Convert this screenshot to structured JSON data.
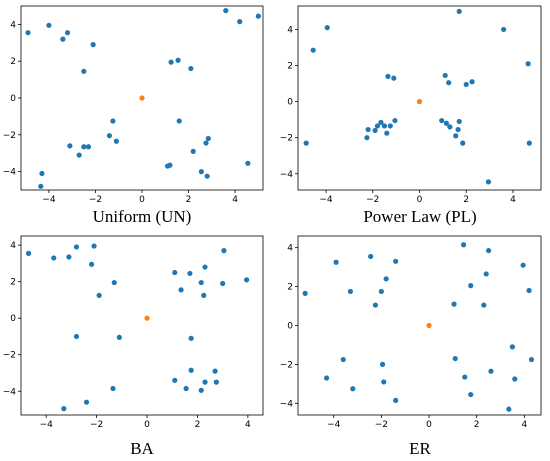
{
  "colors": {
    "node": "#1f77b4",
    "center": "#ff7f0e"
  },
  "chart_data": [
    {
      "type": "scatter",
      "caption": "Uniform (UN)",
      "xlim": [
        -5.2,
        5.2
      ],
      "ylim": [
        -5.0,
        5.0
      ],
      "xticks": [
        -4,
        -2,
        0,
        2,
        4
      ],
      "yticks": [
        -4,
        -2,
        0,
        2,
        4
      ],
      "xtick_labels": [
        "−4",
        "−2",
        "0",
        "2",
        "4"
      ],
      "ytick_labels": [
        "−4",
        "−2",
        "0",
        "2",
        "4"
      ],
      "grid": false,
      "series": [
        {
          "role": "nodes",
          "color": "#1f77b4",
          "points": [
            [
              -4.9,
              3.55
            ],
            [
              -4.3,
              -4.1
            ],
            [
              -4.35,
              -4.8
            ],
            [
              -4.0,
              3.95
            ],
            [
              -3.4,
              3.2
            ],
            [
              -3.2,
              3.55
            ],
            [
              -3.1,
              -2.6
            ],
            [
              -2.7,
              -3.1
            ],
            [
              -2.5,
              1.45
            ],
            [
              -2.5,
              -2.65
            ],
            [
              -2.3,
              -2.65
            ],
            [
              -2.1,
              2.9
            ],
            [
              -1.4,
              -2.05
            ],
            [
              -1.25,
              -1.25
            ],
            [
              -1.1,
              -2.35
            ],
            [
              1.1,
              -3.7
            ],
            [
              1.2,
              -3.65
            ],
            [
              1.25,
              1.95
            ],
            [
              1.55,
              2.05
            ],
            [
              1.6,
              -1.25
            ],
            [
              2.1,
              1.6
            ],
            [
              2.2,
              -2.9
            ],
            [
              2.55,
              -4.0
            ],
            [
              2.75,
              -2.45
            ],
            [
              2.85,
              -2.2
            ],
            [
              2.8,
              -4.25
            ],
            [
              3.6,
              4.75
            ],
            [
              4.2,
              4.15
            ],
            [
              4.55,
              -3.55
            ],
            [
              5.0,
              4.45
            ]
          ]
        },
        {
          "role": "center",
          "color": "#ff7f0e",
          "points": [
            [
              0,
              0
            ]
          ]
        }
      ]
    },
    {
      "type": "scatter",
      "caption": "Power Law (PL)",
      "xlim": [
        -5.2,
        5.2
      ],
      "ylim": [
        -4.9,
        5.3
      ],
      "xticks": [
        -4,
        -2,
        0,
        2,
        4
      ],
      "yticks": [
        -4,
        -2,
        0,
        2,
        4
      ],
      "xtick_labels": [
        "−4",
        "−2",
        "0",
        "2",
        "4"
      ],
      "ytick_labels": [
        "−4",
        "−2",
        "0",
        "2",
        "4"
      ],
      "grid": false,
      "series": [
        {
          "role": "nodes",
          "color": "#1f77b4",
          "points": [
            [
              -4.85,
              -2.3
            ],
            [
              -4.55,
              2.85
            ],
            [
              -3.95,
              4.1
            ],
            [
              -2.25,
              -2.0
            ],
            [
              -2.2,
              -1.55
            ],
            [
              -1.9,
              -1.6
            ],
            [
              -1.8,
              -1.35
            ],
            [
              -1.65,
              -1.15
            ],
            [
              -1.5,
              -1.35
            ],
            [
              -1.4,
              -1.75
            ],
            [
              -1.35,
              1.4
            ],
            [
              -1.25,
              -1.35
            ],
            [
              -1.1,
              1.3
            ],
            [
              -1.05,
              -1.05
            ],
            [
              0.95,
              -1.05
            ],
            [
              1.1,
              1.45
            ],
            [
              1.15,
              -1.2
            ],
            [
              1.25,
              1.05
            ],
            [
              1.3,
              -1.4
            ],
            [
              1.55,
              -1.9
            ],
            [
              1.65,
              -1.55
            ],
            [
              1.7,
              -1.1
            ],
            [
              1.7,
              5.0
            ],
            [
              1.85,
              -2.3
            ],
            [
              2.0,
              0.95
            ],
            [
              2.25,
              1.1
            ],
            [
              2.95,
              -4.45
            ],
            [
              3.6,
              4.0
            ],
            [
              4.65,
              2.1
            ],
            [
              4.7,
              -2.3
            ]
          ]
        },
        {
          "role": "center",
          "color": "#ff7f0e",
          "points": [
            [
              0,
              0
            ]
          ]
        }
      ]
    },
    {
      "type": "scatter",
      "caption": "BA",
      "xlim": [
        -5.0,
        4.6
      ],
      "ylim": [
        -5.3,
        4.5
      ],
      "xticks": [
        -4,
        -2,
        0,
        2,
        4
      ],
      "yticks": [
        -4,
        -2,
        0,
        2,
        4
      ],
      "xtick_labels": [
        "−4",
        "−2",
        "0",
        "2",
        "4"
      ],
      "ytick_labels": [
        "−4",
        "−2",
        "0",
        "2",
        "4"
      ],
      "grid": false,
      "series": [
        {
          "role": "nodes",
          "color": "#1f77b4",
          "points": [
            [
              -4.7,
              3.55
            ],
            [
              -3.7,
              3.3
            ],
            [
              -3.3,
              -4.95
            ],
            [
              -3.1,
              3.35
            ],
            [
              -2.8,
              3.9
            ],
            [
              -2.8,
              -1.0
            ],
            [
              -2.4,
              -4.6
            ],
            [
              -2.2,
              2.95
            ],
            [
              -2.1,
              3.95
            ],
            [
              -1.9,
              1.25
            ],
            [
              -1.35,
              -3.85
            ],
            [
              -1.3,
              1.95
            ],
            [
              -1.1,
              -1.05
            ],
            [
              1.1,
              2.5
            ],
            [
              1.1,
              -3.4
            ],
            [
              1.35,
              1.55
            ],
            [
              1.55,
              -3.85
            ],
            [
              1.7,
              2.45
            ],
            [
              1.75,
              -1.1
            ],
            [
              1.75,
              -2.85
            ],
            [
              2.15,
              1.95
            ],
            [
              2.15,
              -3.95
            ],
            [
              2.25,
              1.25
            ],
            [
              2.3,
              2.8
            ],
            [
              2.3,
              -3.5
            ],
            [
              2.7,
              -2.9
            ],
            [
              2.75,
              -3.5
            ],
            [
              3.0,
              1.9
            ],
            [
              3.05,
              3.7
            ],
            [
              3.95,
              2.1
            ]
          ]
        },
        {
          "role": "center",
          "color": "#ff7f0e",
          "points": [
            [
              0,
              0
            ]
          ]
        }
      ]
    },
    {
      "type": "scatter",
      "caption": "ER",
      "xlim": [
        -5.5,
        4.7
      ],
      "ylim": [
        -4.6,
        4.6
      ],
      "xticks": [
        -4,
        -2,
        0,
        2,
        4
      ],
      "yticks": [
        -4,
        -2,
        0,
        2,
        4
      ],
      "xtick_labels": [
        "−4",
        "−2",
        "0",
        "2",
        "4"
      ],
      "ytick_labels": [
        "−4",
        "−2",
        "0",
        "2",
        "4"
      ],
      "grid": false,
      "series": [
        {
          "role": "nodes",
          "color": "#1f77b4",
          "points": [
            [
              -5.2,
              1.65
            ],
            [
              -4.3,
              -2.7
            ],
            [
              -3.9,
              3.25
            ],
            [
              -3.6,
              -1.75
            ],
            [
              -3.3,
              1.75
            ],
            [
              -3.2,
              -3.25
            ],
            [
              -2.45,
              3.55
            ],
            [
              -2.25,
              1.05
            ],
            [
              -2.0,
              1.75
            ],
            [
              -1.95,
              -2.0
            ],
            [
              -1.9,
              -2.9
            ],
            [
              -1.8,
              2.4
            ],
            [
              -1.4,
              3.3
            ],
            [
              -1.4,
              -3.85
            ],
            [
              1.05,
              1.1
            ],
            [
              1.1,
              -1.7
            ],
            [
              1.45,
              4.15
            ],
            [
              1.5,
              -2.65
            ],
            [
              1.75,
              -3.55
            ],
            [
              1.75,
              2.05
            ],
            [
              2.3,
              1.05
            ],
            [
              2.4,
              2.65
            ],
            [
              2.5,
              3.85
            ],
            [
              2.6,
              -2.35
            ],
            [
              3.35,
              -4.3
            ],
            [
              3.5,
              -1.1
            ],
            [
              3.6,
              -2.75
            ],
            [
              3.95,
              3.1
            ],
            [
              4.2,
              1.8
            ],
            [
              4.3,
              -1.75
            ]
          ]
        },
        {
          "role": "center",
          "color": "#ff7f0e",
          "points": [
            [
              0,
              0
            ]
          ]
        }
      ]
    }
  ]
}
